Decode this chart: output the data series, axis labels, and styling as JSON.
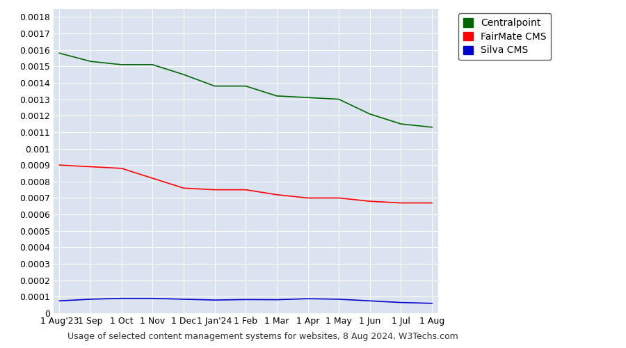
{
  "title": "Usage of selected content management systems for websites, 8 Aug 2024, W3Techs.com",
  "plot_bg_color": "#dce3f0",
  "fig_bg_color": "#ffffff",
  "legend_labels": [
    "Centralpoint",
    "FairMate CMS",
    "Silva CMS"
  ],
  "legend_colors": [
    "#006600",
    "#ff0000",
    "#0000cc"
  ],
  "x_tick_labels": [
    "1 Aug'23",
    "1 Sep",
    "1 Oct",
    "1 Nov",
    "1 Dec",
    "1 Jan'24",
    "1 Feb",
    "1 Mar",
    "1 Apr",
    "1 May",
    "1 Jun",
    "1 Jul",
    "1 Aug"
  ],
  "centralpoint": [
    0.00158,
    0.00153,
    0.00151,
    0.00151,
    0.00145,
    0.00138,
    0.00138,
    0.00132,
    0.00131,
    0.0013,
    0.00121,
    0.00115,
    0.00113
  ],
  "fairmate": [
    0.0009,
    0.00089,
    0.00088,
    0.00082,
    0.00076,
    0.00075,
    0.00075,
    0.00072,
    0.0007,
    0.0007,
    0.00068,
    0.00067,
    0.00067
  ],
  "silva": [
    7.5e-05,
    8.5e-05,
    9e-05,
    9e-05,
    8.5e-05,
    8e-05,
    8.3e-05,
    8.2e-05,
    8.8e-05,
    8.5e-05,
    7.5e-05,
    6.5e-05,
    6e-05
  ],
  "ylim": [
    0,
    0.00185
  ],
  "yticks": [
    0,
    0.0001,
    0.0002,
    0.0003,
    0.0004,
    0.0005,
    0.0006,
    0.0007,
    0.0008,
    0.0009,
    0.001,
    0.0011,
    0.0012,
    0.0013,
    0.0014,
    0.0015,
    0.0016,
    0.0017,
    0.0018
  ],
  "ytick_labels": [
    "0",
    "0.0001",
    "0.0002",
    "0.0003",
    "0.0004",
    "0.0005",
    "0.0006",
    "0.0007",
    "0.0008",
    "0.0009",
    "0.001",
    "0.0011",
    "0.0012",
    "0.0013",
    "0.0014",
    "0.0015",
    "0.0016",
    "0.0017",
    "0.0018"
  ],
  "grid_color": "#ffffff",
  "grid_linewidth": 0.8,
  "line_linewidth": 1.2,
  "legend_handle_size": 12,
  "title_fontsize": 9,
  "tick_fontsize": 9,
  "legend_fontsize": 10
}
